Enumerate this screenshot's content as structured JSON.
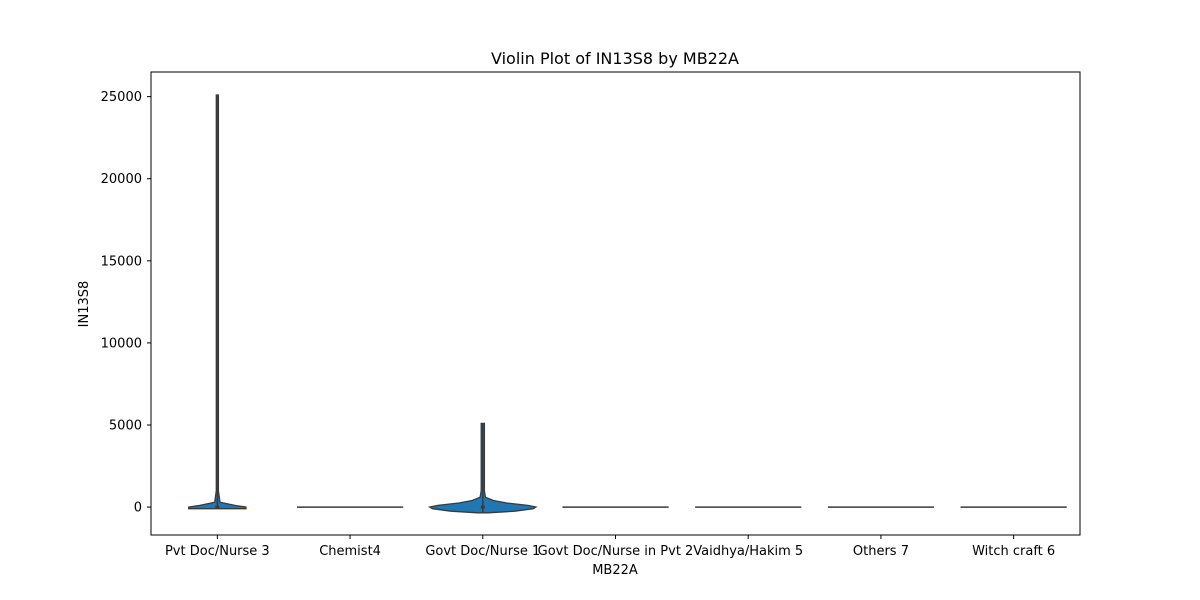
{
  "chart_data": {
    "type": "violin",
    "title": "Violin Plot of IN13S8 by MB22A",
    "xlabel": "MB22A",
    "ylabel": "IN13S8",
    "ylim": [
      -1700,
      26500
    ],
    "yticks": [
      0,
      5000,
      10000,
      15000,
      20000,
      25000
    ],
    "ytick_labels": [
      "0",
      "5000",
      "10000",
      "15000",
      "20000",
      "25000"
    ],
    "categories": [
      "Pvt Doc/Nurse 3",
      "Chemist4",
      "Govt Doc/Nurse 1",
      "Govt Doc/Nurse in Pvt 2",
      "Vaidhya/Hakim 5",
      "Others 7",
      "Witch craft 6"
    ],
    "grid": false,
    "colors": {
      "violin_fill": "#1f77b4",
      "violin_edge": "#3a3a3a",
      "axis": "#000000"
    },
    "groups": [
      {
        "category": "Pvt Doc/Nurse 3",
        "min": -100,
        "max": 25100,
        "q1": 0,
        "median": 0,
        "q3": 0,
        "density": [
          [
            -100,
            0.54
          ],
          [
            0,
            0.54
          ],
          [
            100,
            0.33
          ],
          [
            300,
            0.05
          ],
          [
            1000,
            0.02
          ],
          [
            25100,
            0.02
          ]
        ]
      },
      {
        "category": "Chemist4",
        "min": 0,
        "max": 0,
        "q1": 0,
        "median": 0,
        "q3": 0,
        "density": []
      },
      {
        "category": "Govt Doc/Nurse 1",
        "min": -350,
        "max": 5100,
        "q1": 0,
        "median": 0,
        "q3": 0,
        "density": [
          [
            -350,
            0.1
          ],
          [
            -250,
            0.6
          ],
          [
            -100,
            0.95
          ],
          [
            0,
            1.0
          ],
          [
            100,
            0.85
          ],
          [
            250,
            0.45
          ],
          [
            400,
            0.2
          ],
          [
            600,
            0.05
          ],
          [
            1000,
            0.03
          ],
          [
            5100,
            0.03
          ]
        ]
      },
      {
        "category": "Govt Doc/Nurse in Pvt 2",
        "min": 0,
        "max": 0,
        "q1": 0,
        "median": 0,
        "q3": 0,
        "density": []
      },
      {
        "category": "Vaidhya/Hakim 5",
        "min": 0,
        "max": 0,
        "q1": 0,
        "median": 0,
        "q3": 0,
        "density": []
      },
      {
        "category": "Others 7",
        "min": 0,
        "max": 0,
        "q1": 0,
        "median": 0,
        "q3": 0,
        "density": []
      },
      {
        "category": "Witch craft 6",
        "min": 0,
        "max": 0,
        "q1": 0,
        "median": 0,
        "q3": 0,
        "density": []
      }
    ]
  }
}
